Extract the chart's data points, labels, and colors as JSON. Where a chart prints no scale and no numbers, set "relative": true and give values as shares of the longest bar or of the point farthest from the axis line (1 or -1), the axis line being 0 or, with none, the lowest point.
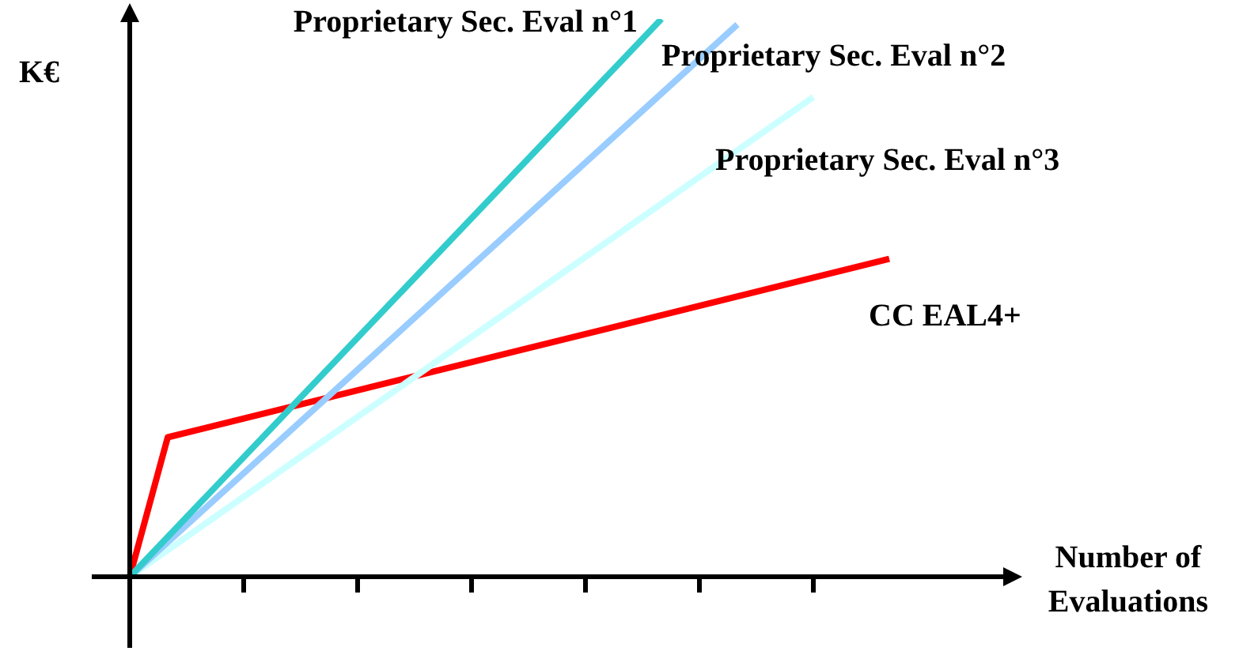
{
  "chart_data": {
    "type": "line",
    "relative": true,
    "ylabel": "K€",
    "xlabel": "Number of Evaluations",
    "categories": [
      null,
      null,
      null,
      null,
      null,
      null,
      null,
      null,
      null,
      null,
      null,
      null,
      null,
      null,
      null,
      null,
      null,
      null,
      null,
      null,
      null,
      null,
      null,
      null
    ],
    "grid": false,
    "legend": false,
    "marker": "none",
    "line_style": "solid",
    "series": [
      {
        "name": "Proprietary Sec. Eval n°1",
        "color": "#33cccc",
        "values": [
          0,
          null,
          null,
          null,
          null,
          null,
          null,
          null,
          null,
          null,
          null,
          null,
          null,
          null,
          1,
          null,
          null,
          null,
          null,
          null,
          null,
          null,
          null,
          null
        ]
      },
      {
        "name": "Proprietary Sec. Eval n°2",
        "color": "#99ccff",
        "values": [
          0,
          null,
          null,
          null,
          null,
          null,
          null,
          null,
          null,
          null,
          null,
          null,
          null,
          null,
          null,
          null,
          0.99,
          null,
          null,
          null,
          null,
          null,
          null,
          null
        ]
      },
      {
        "name": "Proprietary Sec. Eval n°3",
        "color": "#ccffff",
        "values": [
          0,
          null,
          null,
          null,
          null,
          null,
          null,
          null,
          null,
          null,
          null,
          null,
          null,
          null,
          null,
          null,
          null,
          null,
          0.86,
          null,
          null,
          null,
          null,
          null
        ]
      },
      {
        "name": "CC EAL4+",
        "color": "#ff0000",
        "values": [
          0,
          0.25,
          null,
          null,
          null,
          null,
          null,
          null,
          null,
          null,
          null,
          null,
          null,
          null,
          null,
          null,
          null,
          null,
          null,
          null,
          0.57,
          null,
          null,
          null
        ]
      }
    ]
  }
}
